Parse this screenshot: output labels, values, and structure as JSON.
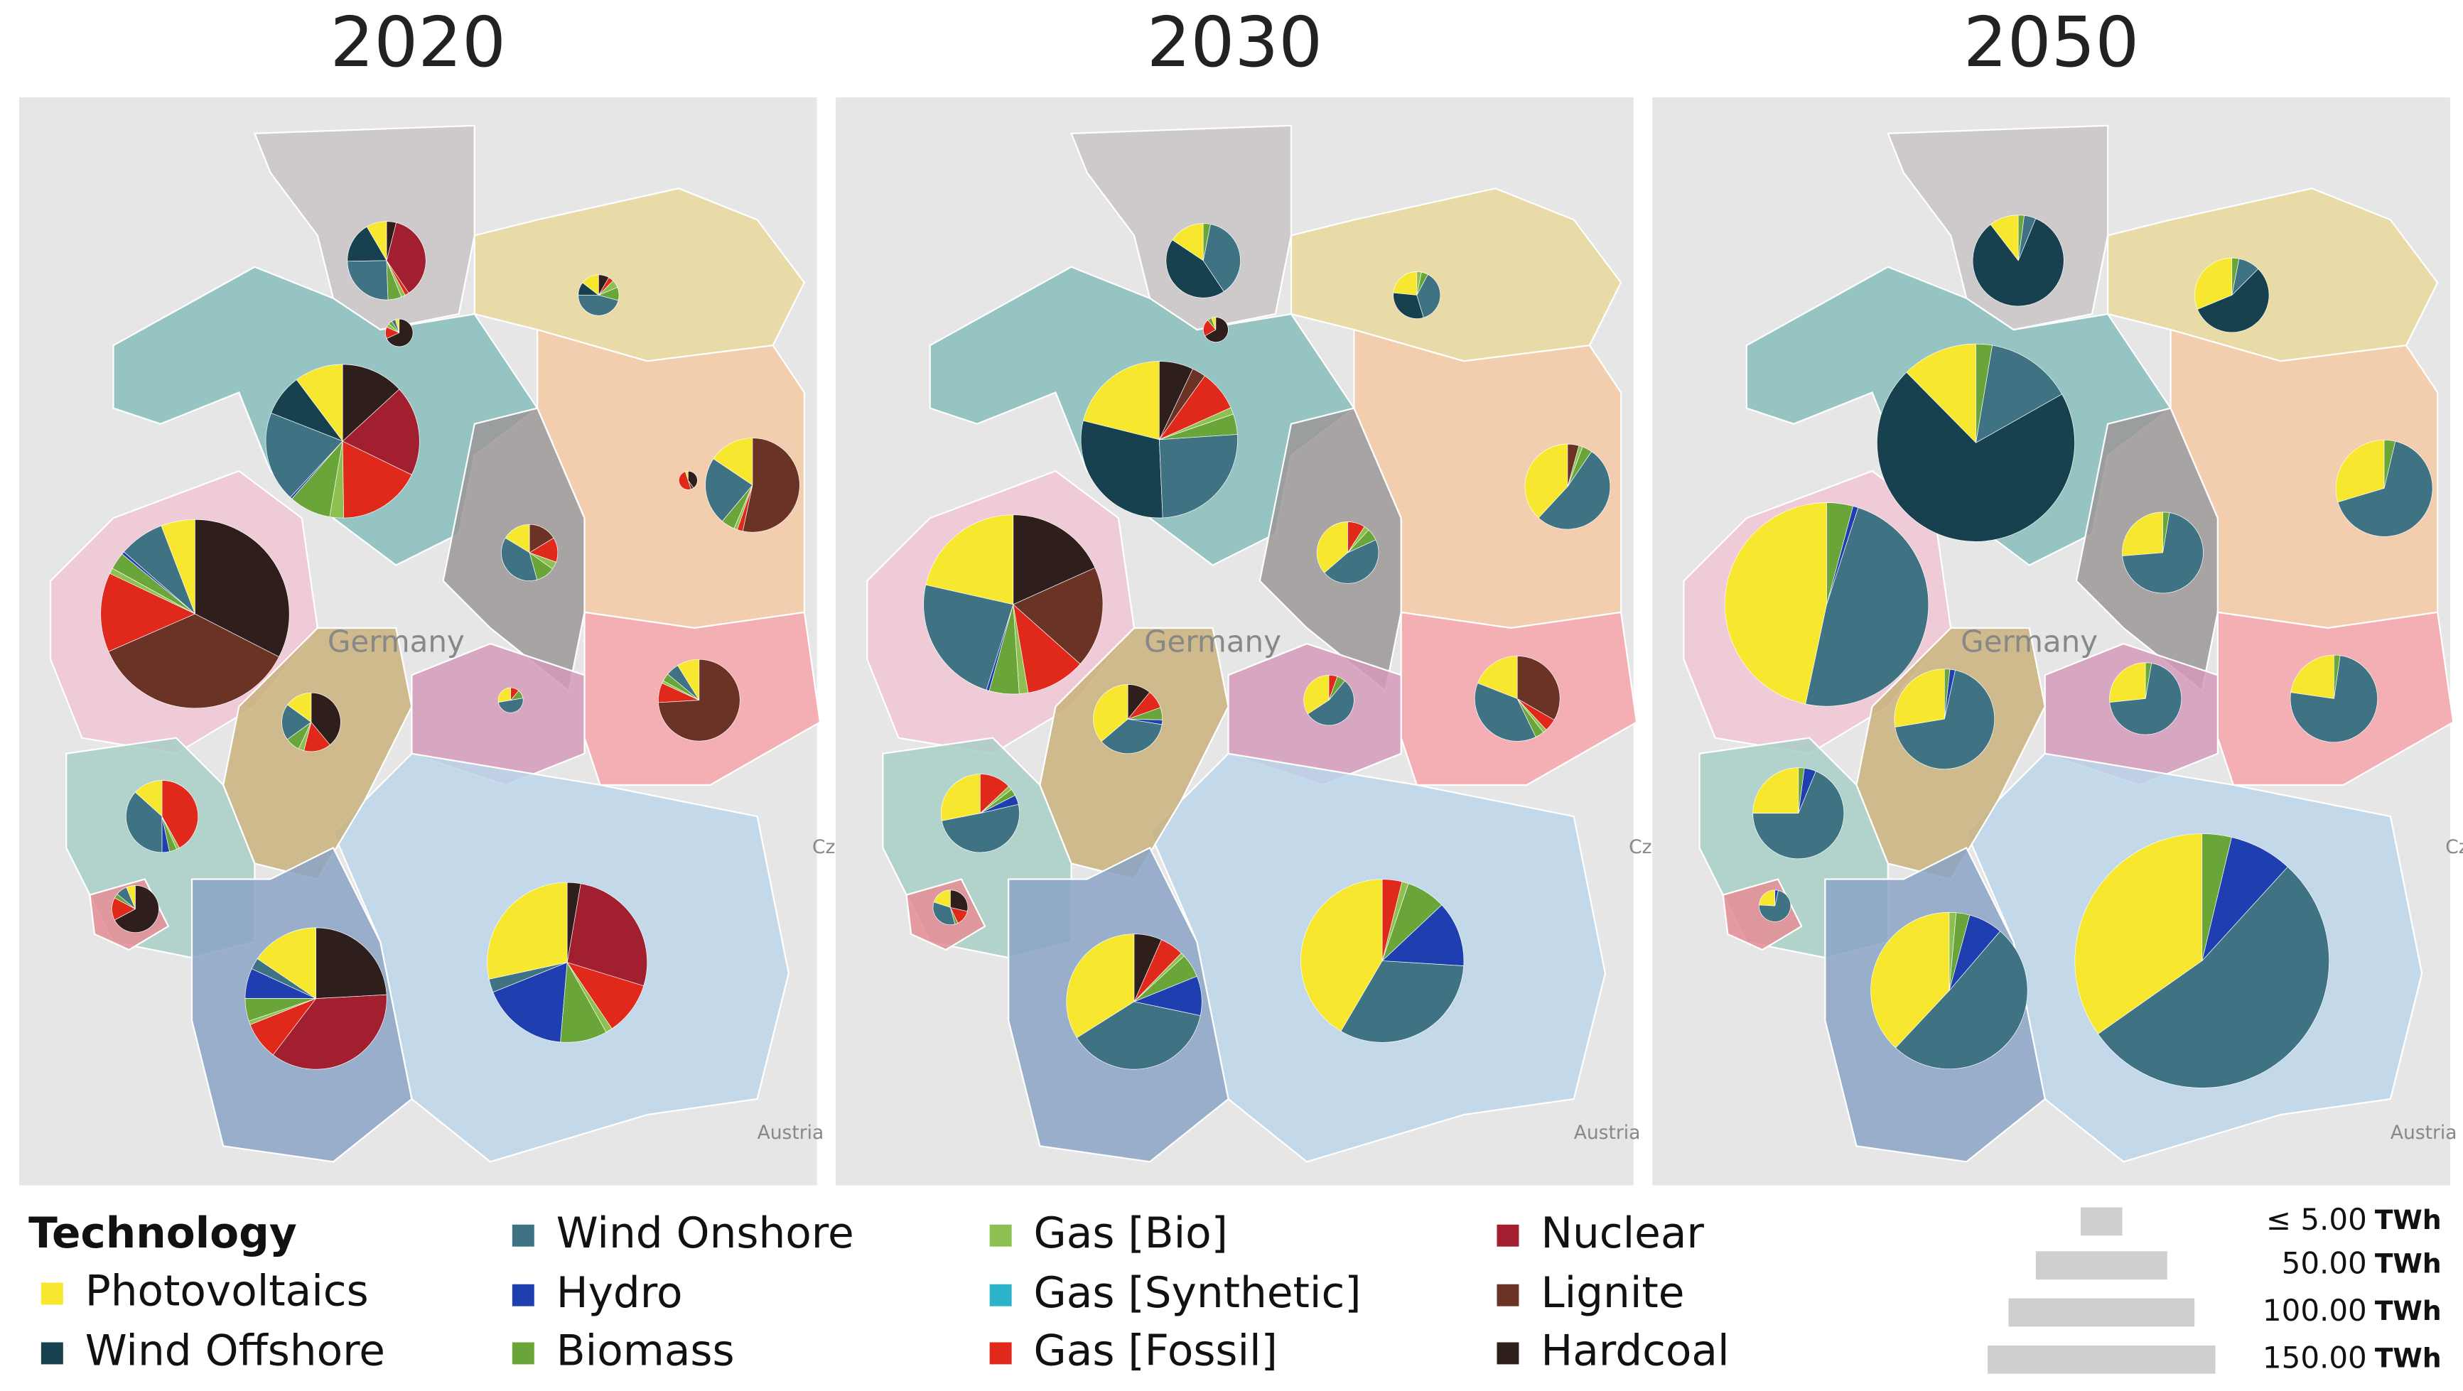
{
  "maps": [
    {
      "title": "2020",
      "country_label": "Germany",
      "neighbor_labels": [
        "Cz",
        "Austria"
      ],
      "pies": [
        {
          "values": [
            1.5,
            3,
            4.5,
            0,
            1,
            0.3,
            0,
            0.3,
            6.5,
            0,
            0.7
          ]
        },
        {
          "values": [
            0.1,
            0,
            0.1,
            0,
            0.1,
            0.1,
            0,
            0.3,
            0,
            0,
            1.5
          ]
        },
        {
          "values": [
            0.7,
            0.5,
            2.2,
            0,
            0.5,
            0.3,
            0,
            0.2,
            0,
            0,
            0.4
          ]
        },
        {
          "values": [
            7,
            6,
            13,
            0.3,
            6,
            2,
            0,
            12,
            13,
            0,
            9
          ]
        },
        {
          "values": [
            0.05,
            0,
            0,
            0,
            0,
            0,
            0,
            0.5,
            0,
            0.05,
            0.4
          ]
        },
        {
          "values": [
            4,
            0,
            6,
            0,
            1.2,
            0.3,
            0,
            0.5,
            0,
            13.7,
            0
          ]
        },
        {
          "values": [
            1.5,
            0,
            3.5,
            0,
            1,
            0.4,
            0,
            1.3,
            0,
            1.5,
            0
          ]
        },
        {
          "values": [
            6,
            0,
            8,
            0.5,
            3,
            1,
            0,
            14,
            0,
            37,
            33.5
          ]
        },
        {
          "values": [
            1.7,
            0,
            1,
            0,
            0.6,
            0.2,
            0,
            1.5,
            0,
            14.3,
            0
          ]
        },
        {
          "values": [
            0.5,
            0,
            0.9,
            0,
            0.2,
            0,
            0,
            0.2,
            0,
            0,
            0
          ]
        },
        {
          "values": [
            1.5,
            0,
            2,
            0,
            0.8,
            0.3,
            0,
            1.5,
            0,
            0,
            3.9
          ]
        },
        {
          "values": [
            2,
            0,
            5.5,
            0.5,
            0.5,
            0.2,
            0,
            6.3,
            0,
            0,
            0
          ]
        },
        {
          "values": [
            0.4,
            0,
            0.5,
            0,
            0.2,
            0,
            0,
            1,
            0,
            0,
            4.3
          ]
        },
        {
          "values": [
            9,
            0,
            1.5,
            4,
            3,
            0.5,
            0,
            5,
            21,
            0,
            14
          ]
        },
        {
          "values": [
            21,
            0,
            2,
            13,
            7,
            1,
            0,
            8,
            20,
            0,
            2
          ]
        }
      ]
    },
    {
      "title": "2030",
      "country_label": "Germany",
      "neighbor_labels": [
        "Cz",
        "Austria"
      ],
      "pies": [
        {
          "values": [
            2.5,
            7,
            6,
            0,
            0.5,
            0,
            0,
            0,
            0,
            0,
            0
          ]
        },
        {
          "values": [
            0.1,
            0,
            0,
            0,
            0.1,
            0,
            0,
            0.4,
            0,
            0,
            1.2
          ]
        },
        {
          "values": [
            1.5,
            2,
            2.4,
            0,
            0.3,
            0.2,
            0,
            0,
            0,
            0,
            0
          ]
        },
        {
          "values": [
            15,
            21,
            18,
            0,
            3,
            1,
            0,
            6,
            0,
            2,
            5
          ]
        },
        {
          "values": [
            8,
            0,
            11,
            0,
            0.8,
            0.3,
            0,
            0,
            0,
            0.9,
            0
          ]
        },
        {
          "values": [
            4,
            0,
            5,
            0,
            0.7,
            0.3,
            0,
            1,
            0,
            0,
            0
          ]
        },
        {
          "values": [
            20,
            0,
            22,
            0.5,
            5,
            1.5,
            0,
            10,
            0,
            17,
            17
          ]
        },
        {
          "values": [
            4,
            0,
            8,
            0,
            0.7,
            0.3,
            0,
            1,
            0,
            7,
            0
          ]
        },
        {
          "values": [
            2.5,
            0,
            4,
            0,
            0.4,
            0,
            0,
            0.4,
            0,
            0,
            0
          ]
        },
        {
          "values": [
            5,
            0,
            5,
            0.3,
            0.8,
            0,
            0,
            1.2,
            0,
            0,
            1.5
          ]
        },
        {
          "values": [
            5,
            0,
            9,
            0.7,
            0.5,
            0.3,
            0,
            2.3,
            0,
            0,
            0
          ]
        },
        {
          "values": [
            0.7,
            0,
            1.2,
            0,
            0.1,
            0,
            0,
            0.5,
            0,
            0,
            1
          ]
        },
        {
          "values": [
            18,
            0,
            20,
            5,
            3,
            0.5,
            0,
            3,
            0,
            0,
            3.5
          ]
        },
        {
          "values": [
            32,
            0,
            25,
            10,
            6,
            1,
            0,
            3,
            0,
            0,
            0
          ]
        }
      ]
    },
    {
      "title": "2050",
      "country_label": "Germany",
      "neighbor_labels": [
        "Cz",
        "Austria"
      ],
      "pies": [
        {
          "values": [
            2.5,
            20,
            1,
            0,
            0.5,
            0,
            0,
            0,
            0,
            0,
            0
          ]
        },
        {
          "values": [
            5,
            9,
            1.5,
            0,
            0.5,
            0,
            0,
            0,
            0,
            0,
            0
          ]
        },
        {
          "values": [
            14,
            80,
            16,
            0,
            3,
            0,
            0,
            0,
            0,
            0,
            0
          ]
        },
        {
          "values": [
            8,
            0,
            18,
            0,
            1,
            0,
            0,
            0,
            0,
            0,
            0
          ]
        },
        {
          "values": [
            5,
            0,
            13.5,
            0,
            0.5,
            0,
            0,
            0,
            0,
            0,
            0
          ]
        },
        {
          "values": [
            56,
            0,
            58,
            1,
            5,
            0,
            0,
            0,
            0,
            0,
            0
          ]
        },
        {
          "values": [
            5,
            0,
            16.5,
            0,
            0.5,
            0,
            0,
            0,
            0,
            0,
            0
          ]
        },
        {
          "values": [
            4,
            0,
            10.6,
            0,
            0.4,
            0,
            0,
            0,
            0,
            0,
            0
          ]
        },
        {
          "values": [
            8,
            0,
            20,
            0.5,
            0.5,
            0,
            0,
            0,
            0,
            0,
            0
          ]
        },
        {
          "values": [
            6,
            0,
            16.5,
            1,
            0.5,
            0,
            0,
            0,
            0,
            0,
            0
          ]
        },
        {
          "values": [
            0.7,
            0,
            2.1,
            0.1,
            0,
            0,
            0,
            0,
            0,
            0,
            0
          ]
        },
        {
          "values": [
            27,
            0,
            36,
            5,
            2,
            1,
            0,
            0,
            0,
            0,
            0
          ]
        },
        {
          "values": [
            65,
            0,
            100,
            15,
            7,
            0,
            0,
            0,
            0,
            0,
            0
          ]
        }
      ]
    }
  ],
  "legend": {
    "title": "Technology",
    "items": [
      {
        "name": "Photovoltaics",
        "color": "#f7e72f"
      },
      {
        "name": "Wind Offshore",
        "color": "#17414f"
      },
      {
        "name": "Wind Onshore",
        "color": "#3f7384"
      },
      {
        "name": "Hydro",
        "color": "#1f3fb0"
      },
      {
        "name": "Biomass",
        "color": "#6aa53a"
      },
      {
        "name": "Gas [Bio]",
        "color": "#8dc051"
      },
      {
        "name": "Gas [Synthetic]",
        "color": "#2bb4c9"
      },
      {
        "name": "Gas [Fossil]",
        "color": "#e0291b"
      },
      {
        "name": "Nuclear",
        "color": "#a11f2f"
      },
      {
        "name": "Lignite",
        "color": "#6b3226"
      },
      {
        "name": "Hardcoal",
        "color": "#2e1f1c"
      }
    ]
  },
  "size_legend": {
    "unit": "TWh",
    "items": [
      {
        "value": 5,
        "label": "≤ 5.00"
      },
      {
        "value": 50,
        "label": "50.00"
      },
      {
        "value": 100,
        "label": "100.00"
      },
      {
        "value": 150,
        "label": "150.00"
      }
    ]
  }
}
